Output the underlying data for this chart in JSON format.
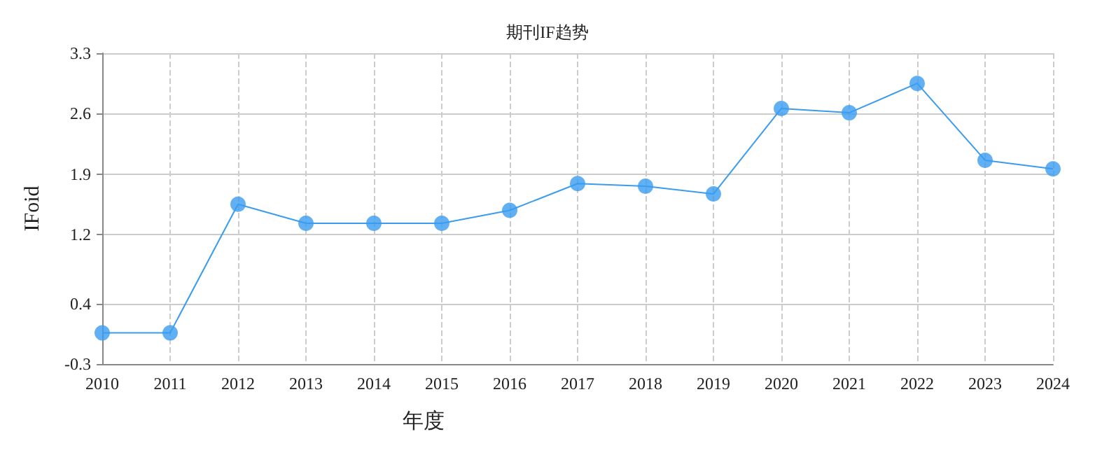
{
  "chart_data": {
    "type": "line",
    "title": "期刊IF趋势",
    "xlabel": "年度",
    "ylabel": "IFoid",
    "categories": [
      "2010",
      "2011",
      "2012",
      "2013",
      "2014",
      "2015",
      "2016",
      "2017",
      "2018",
      "2019",
      "2020",
      "2021",
      "2022",
      "2023",
      "2024"
    ],
    "series": [
      {
        "color": "#3a9cf0",
        "values": [
          0.06,
          0.06,
          1.55,
          1.33,
          1.33,
          1.33,
          1.48,
          1.79,
          1.76,
          1.67,
          2.66,
          2.61,
          2.95,
          2.06,
          1.96
        ]
      }
    ],
    "ylim": [
      -0.3,
      3.3
    ],
    "yticks": [
      -0.3,
      0.4,
      1.2,
      1.9,
      2.6,
      3.3
    ],
    "grid": true,
    "marker": "circle",
    "line_style": "solid"
  }
}
